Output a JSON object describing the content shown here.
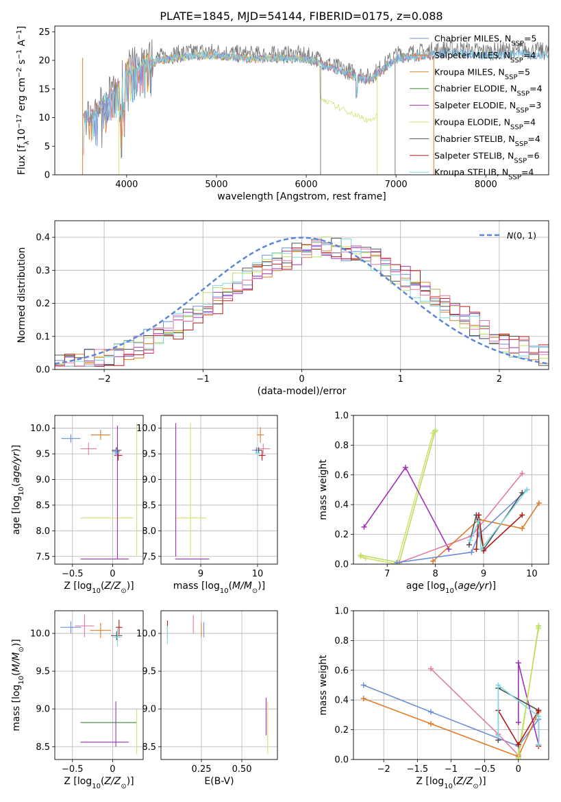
{
  "title": "PLATE=1845, MJD=54144, FIBERID=0175, z=0.088",
  "colors": {
    "Chabrier MILES": "#6a8fd8",
    "Salpeter MILES": "#e07b25",
    "Kroupa MILES": "#d08a2a",
    "Chabrier ELODIE": "#3d8a3d",
    "Salpeter ELODIE": "#a02fb8",
    "Kroupa ELODIE": "#d6e070",
    "Chabrier STELIB": "#505050",
    "Salpeter STELIB": "#b01818",
    "Kroupa STELIB": "#7fd8e0",
    "extra_pink": "#e37aa8",
    "extra_lime": "#b8e060",
    "normal": "#5b86d6",
    "grey": "#7a7a7a"
  },
  "chart_data": [
    {
      "id": "spectrum",
      "type": "line",
      "xlabel": "wavelength [Angstrom, rest frame]",
      "ylabel": "Flux [f_λ10^-17 erg cm^-2 s^-1 A^-1]",
      "xlim": [
        3200,
        8700
      ],
      "ylim": [
        0,
        26
      ],
      "xticks": [
        4000,
        5000,
        6000,
        7000,
        8000
      ],
      "yticks": [
        0,
        5,
        10,
        15,
        20,
        25
      ],
      "legend_position": "top-right",
      "legend": [
        {
          "name": "Chabrier MILES",
          "nssp": 5
        },
        {
          "name": "Salpeter MILES",
          "nssp": 4
        },
        {
          "name": "Kroupa MILES",
          "nssp": 5
        },
        {
          "name": "Chabrier ELODIE",
          "nssp": 4
        },
        {
          "name": "Salpeter ELODIE",
          "nssp": 3
        },
        {
          "name": "Kroupa ELODIE",
          "nssp": 4
        },
        {
          "name": "Chabrier STELIB",
          "nssp": 4
        },
        {
          "name": "Salpeter STELIB",
          "nssp": 6
        },
        {
          "name": "Kroupa STELIB",
          "nssp": 4
        }
      ],
      "continuum": [
        [
          3520,
          10
        ],
        [
          3700,
          12
        ],
        [
          3900,
          16
        ],
        [
          4000,
          19
        ],
        [
          4200,
          20
        ],
        [
          4500,
          21
        ],
        [
          4800,
          21.5
        ],
        [
          5000,
          21.5
        ],
        [
          5300,
          21
        ],
        [
          5600,
          21
        ],
        [
          5900,
          21
        ],
        [
          6100,
          20.5
        ],
        [
          6300,
          19
        ],
        [
          6500,
          18
        ],
        [
          6700,
          17
        ],
        [
          6900,
          19.5
        ],
        [
          7000,
          21
        ],
        [
          7300,
          21.5
        ],
        [
          7600,
          22
        ],
        [
          8000,
          21.5
        ],
        [
          8400,
          21.8
        ],
        [
          8700,
          21.5
        ]
      ]
    },
    {
      "id": "residuals",
      "type": "line",
      "xlabel": "(data-model)/error",
      "ylabel": "Normed distribution",
      "xlim": [
        -2.5,
        2.5
      ],
      "ylim": [
        0,
        0.45
      ],
      "xticks": [
        -2,
        -1,
        0,
        1,
        2
      ],
      "yticks": [
        0.0,
        0.1,
        0.2,
        0.3,
        0.4
      ],
      "legend_position": "top-right",
      "normal_label": "N(0,1)"
    },
    {
      "id": "age-vs-Z",
      "type": "scatter",
      "xlabel": "Z [log10(Z/Z☉)]",
      "ylabel": "age  [log10(age/yr)]",
      "xlim": [
        -0.72,
        0.38
      ],
      "ylim": [
        7.35,
        10.25
      ],
      "xticks": [
        -0.5,
        0.0
      ],
      "yticks": [
        7.5,
        8.0,
        8.5,
        9.0,
        9.5,
        10.0
      ],
      "points": [
        {
          "x": -0.52,
          "y": 9.8,
          "xerr": 0.12,
          "yerr": 0.08,
          "c": "Chabrier MILES"
        },
        {
          "x": -0.15,
          "y": 9.87,
          "xerr": 0.12,
          "yerr": 0.1,
          "c": "Salpeter MILES"
        },
        {
          "x": -0.3,
          "y": 9.6,
          "xerr": 0.1,
          "yerr": 0.12,
          "c": "extra_pink"
        },
        {
          "x": 0.05,
          "y": 9.57,
          "xerr": 0.06,
          "yerr": 0.06,
          "c": "Chabrier STELIB"
        },
        {
          "x": 0.07,
          "y": 9.47,
          "xerr": 0.05,
          "yerr": 0.1,
          "c": "Salpeter STELIB"
        },
        {
          "x": 0.05,
          "y": 9.52,
          "xerr": 0.04,
          "yerr": 0.07,
          "c": "Kroupa STELIB"
        },
        {
          "x": 0.04,
          "y": 9.55,
          "xerr": 0.05,
          "yerr": 0.07,
          "c": "Chabrier MILES"
        },
        {
          "x": -0.07,
          "y": 8.25,
          "xerr": 0.33,
          "yerr": 0.0,
          "c": "Kroupa ELODIE"
        },
        {
          "x": 0.3,
          "y": 8.8,
          "xerr": 0.0,
          "yerr": 1.3,
          "c": "Kroupa ELODIE"
        },
        {
          "x": 0.06,
          "y": 8.75,
          "xerr": 0.0,
          "yerr": 1.3,
          "c": "Salpeter ELODIE"
        },
        {
          "x": -0.1,
          "y": 7.45,
          "xerr": 0.3,
          "yerr": 0.0,
          "c": "Salpeter ELODIE"
        }
      ]
    },
    {
      "id": "age-vs-mass",
      "type": "scatter",
      "xlabel": "mass [log10(M/M☉)]",
      "ylabel": "",
      "xlim": [
        8.3,
        10.35
      ],
      "ylim": [
        7.35,
        10.25
      ],
      "xticks": [
        9,
        10
      ],
      "yticks": [
        7.5,
        8.0,
        8.5,
        9.0,
        9.5,
        10.0
      ],
      "points": [
        {
          "x": 9.98,
          "y": 9.57,
          "xerr": 0.08,
          "yerr": 0.06,
          "c": "Chabrier MILES"
        },
        {
          "x": 10.05,
          "y": 9.87,
          "xerr": 0.06,
          "yerr": 0.15,
          "c": "Salpeter MILES"
        },
        {
          "x": 10.1,
          "y": 9.6,
          "xerr": 0.12,
          "yerr": 0.1,
          "c": "extra_pink"
        },
        {
          "x": 10.02,
          "y": 9.57,
          "xerr": 0.06,
          "yerr": 0.06,
          "c": "Chabrier STELIB"
        },
        {
          "x": 10.08,
          "y": 9.47,
          "xerr": 0.06,
          "yerr": 0.1,
          "c": "Salpeter STELIB"
        },
        {
          "x": 10.0,
          "y": 9.52,
          "xerr": 0.05,
          "yerr": 0.07,
          "c": "Kroupa STELIB"
        },
        {
          "x": 8.82,
          "y": 8.25,
          "xerr": 0.28,
          "yerr": 0.0,
          "c": "Kroupa ELODIE"
        },
        {
          "x": 8.82,
          "y": 8.8,
          "xerr": 0.0,
          "yerr": 1.3,
          "c": "Kroupa ELODIE"
        },
        {
          "x": 8.56,
          "y": 8.8,
          "xerr": 0.0,
          "yerr": 1.3,
          "c": "Salpeter ELODIE"
        },
        {
          "x": 8.85,
          "y": 7.45,
          "xerr": 0.3,
          "yerr": 0.0,
          "c": "Salpeter ELODIE"
        }
      ]
    },
    {
      "id": "mass-weight-vs-age",
      "type": "line",
      "xlabel": "age  [log10(age/yr)]",
      "ylabel": "mass weight",
      "xlim": [
        6.3,
        10.35
      ],
      "ylim": [
        0,
        1.0
      ],
      "xticks": [
        7,
        8,
        9,
        10
      ],
      "yticks": [
        0.0,
        0.2,
        0.4,
        0.6,
        0.8,
        1.0
      ],
      "series": [
        {
          "c": "Kroupa ELODIE",
          "x": [
            6.45,
            6.55,
            7.2,
            7.95,
            7.99
          ],
          "y": [
            0.05,
            0.04,
            0.0,
            0.88,
            0.89
          ]
        },
        {
          "c": "extra_lime",
          "x": [
            6.45,
            7.25,
            8.0
          ],
          "y": [
            0.06,
            0.01,
            0.9
          ]
        },
        {
          "c": "Salpeter ELODIE",
          "x": [
            6.52,
            7.38,
            8.28
          ],
          "y": [
            0.25,
            0.65,
            0.1
          ]
        },
        {
          "c": "extra_pink",
          "x": [
            7.25,
            8.75,
            9.8
          ],
          "y": [
            0.01,
            0.19,
            0.61
          ]
        },
        {
          "c": "Salpeter MILES",
          "x": [
            7.95,
            8.9,
            9.8,
            10.15
          ],
          "y": [
            0.02,
            0.3,
            0.24,
            0.41
          ]
        },
        {
          "c": "Chabrier MILES",
          "x": [
            7.2,
            8.75,
            8.9,
            9.9
          ],
          "y": [
            0.01,
            0.08,
            0.2,
            0.5
          ]
        },
        {
          "c": "Chabrier STELIB",
          "x": [
            8.7,
            8.85,
            9.0,
            9.8
          ],
          "y": [
            0.13,
            0.33,
            0.1,
            0.48
          ]
        },
        {
          "c": "Salpeter STELIB",
          "x": [
            8.85,
            8.9,
            9.0,
            9.8
          ],
          "y": [
            0.1,
            0.33,
            0.09,
            0.33
          ]
        },
        {
          "c": "Kroupa STELIB",
          "x": [
            8.72,
            8.9,
            8.95,
            9.9
          ],
          "y": [
            0.16,
            0.29,
            0.1,
            0.5
          ]
        }
      ]
    },
    {
      "id": "mass-vs-Z",
      "type": "scatter",
      "xlabel": "Z [log10(Z/Z☉)]",
      "ylabel": "mass [log10(M/M☉)]",
      "xlim": [
        -0.72,
        0.38
      ],
      "ylim": [
        8.33,
        10.3
      ],
      "xticks": [
        -0.5,
        0.0
      ],
      "yticks": [
        8.5,
        9.0,
        9.5,
        10.0
      ],
      "points": [
        {
          "x": -0.52,
          "y": 10.08,
          "xerr": 0.13,
          "yerr": 0.08,
          "c": "Chabrier MILES"
        },
        {
          "x": -0.35,
          "y": 10.1,
          "xerr": 0.12,
          "yerr": 0.15,
          "c": "extra_pink"
        },
        {
          "x": -0.15,
          "y": 10.04,
          "xerr": 0.13,
          "yerr": 0.1,
          "c": "Salpeter MILES"
        },
        {
          "x": 0.05,
          "y": 9.97,
          "xerr": 0.07,
          "yerr": 0.06,
          "c": "Chabrier STELIB"
        },
        {
          "x": 0.08,
          "y": 10.08,
          "xerr": 0.04,
          "yerr": 0.1,
          "c": "Salpeter STELIB"
        },
        {
          "x": 0.06,
          "y": 9.95,
          "xerr": 0.05,
          "yerr": 0.12,
          "c": "Kroupa STELIB"
        },
        {
          "x": -0.05,
          "y": 8.82,
          "xerr": 0.35,
          "yerr": 0.0,
          "c": "Kroupa ELODIE"
        },
        {
          "x": -0.05,
          "y": 8.82,
          "xerr": 0.35,
          "yerr": 0.0,
          "c": "Chabrier ELODIE"
        },
        {
          "x": 0.3,
          "y": 8.7,
          "xerr": 0.0,
          "yerr": 0.3,
          "c": "Kroupa ELODIE"
        },
        {
          "x": 0.04,
          "y": 8.8,
          "xerr": 0.0,
          "yerr": 0.3,
          "c": "Salpeter ELODIE"
        },
        {
          "x": -0.1,
          "y": 8.56,
          "xerr": 0.3,
          "yerr": 0.0,
          "c": "Salpeter ELODIE"
        }
      ]
    },
    {
      "id": "mass-vs-EBV",
      "type": "scatter",
      "xlabel": "E(B-V)",
      "ylabel": "",
      "xlim": [
        0.0,
        0.72
      ],
      "ylim": [
        8.33,
        10.3
      ],
      "xticks": [
        0.25,
        0.5
      ],
      "xticklabels": [
        "0.25",
        "0.50"
      ],
      "yticks": [
        8.5,
        9.0,
        9.5,
        10.0
      ],
      "points": [
        {
          "x": 0.04,
          "y": 10.05,
          "xerr": 0.0,
          "yerr": 0.12,
          "c": "Salpeter STELIB"
        },
        {
          "x": 0.04,
          "y": 9.98,
          "xerr": 0.0,
          "yerr": 0.12,
          "c": "Kroupa STELIB"
        },
        {
          "x": 0.2,
          "y": 10.12,
          "xerr": 0.0,
          "yerr": 0.12,
          "c": "extra_pink"
        },
        {
          "x": 0.25,
          "y": 10.05,
          "xerr": 0.0,
          "yerr": 0.1,
          "c": "Salpeter MILES"
        },
        {
          "x": 0.265,
          "y": 10.05,
          "xerr": 0.0,
          "yerr": 0.1,
          "c": "Chabrier MILES"
        },
        {
          "x": 0.66,
          "y": 8.75,
          "xerr": 0.0,
          "yerr": 0.35,
          "c": "Kroupa ELODIE"
        },
        {
          "x": 0.65,
          "y": 8.9,
          "xerr": 0.0,
          "yerr": 0.25,
          "c": "Salpeter ELODIE"
        }
      ]
    },
    {
      "id": "mass-weight-vs-Z",
      "type": "line",
      "xlabel": "Z [log10(Z/Z☉)]",
      "ylabel": "mass weight",
      "xlim": [
        -2.45,
        0.45
      ],
      "ylim": [
        0,
        1.0
      ],
      "xticks": [
        -2.0,
        -1.5,
        -1.0,
        -0.5,
        0.0
      ],
      "yticks": [
        0.0,
        0.2,
        0.4,
        0.6,
        0.8,
        1.0
      ],
      "series": [
        {
          "c": "Chabrier MILES",
          "x": [
            -2.3,
            -1.3,
            0.0,
            0.3
          ],
          "y": [
            0.5,
            0.32,
            0.09,
            0.27
          ]
        },
        {
          "c": "Salpeter MILES",
          "x": [
            -2.3,
            -1.3,
            0.0,
            0.3
          ],
          "y": [
            0.41,
            0.24,
            0.02,
            0.32
          ]
        },
        {
          "c": "extra_pink",
          "x": [
            -1.3,
            -0.3,
            0.0
          ],
          "y": [
            0.61,
            0.17,
            0.03
          ]
        },
        {
          "c": "Salpeter ELODIE",
          "x": [
            0.0,
            0.0,
            0.3
          ],
          "y": [
            0.25,
            0.65,
            0.1
          ]
        },
        {
          "c": "Kroupa ELODIE",
          "x": [
            0.0,
            0.0,
            0.3,
            0.3
          ],
          "y": [
            0.0,
            0.04,
            0.88,
            0.89
          ]
        },
        {
          "c": "extra_lime",
          "x": [
            0.0,
            0.3
          ],
          "y": [
            0.01,
            0.9
          ]
        },
        {
          "c": "Chabrier STELIB",
          "x": [
            -0.3,
            -0.3,
            0.3,
            0.3
          ],
          "y": [
            0.13,
            0.48,
            0.33,
            0.1
          ]
        },
        {
          "c": "Salpeter STELIB",
          "x": [
            -0.3,
            0.0,
            0.3,
            0.3
          ],
          "y": [
            0.33,
            0.1,
            0.33,
            0.09
          ]
        },
        {
          "c": "Kroupa STELIB",
          "x": [
            -0.3,
            -0.3,
            0.3,
            0.3
          ],
          "y": [
            0.16,
            0.5,
            0.29,
            0.1
          ]
        }
      ]
    }
  ]
}
